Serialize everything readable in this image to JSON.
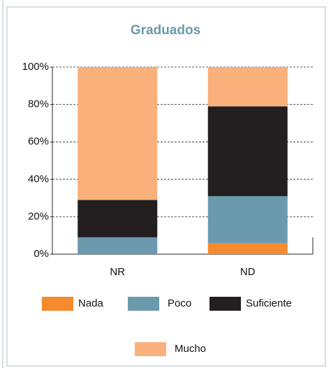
{
  "chart_data": {
    "type": "stacked_bar",
    "title": "Graduados",
    "categories": [
      "NR",
      "ND"
    ],
    "series": [
      {
        "name": "Nada",
        "color": "#f58a2e",
        "values": [
          0,
          6
        ]
      },
      {
        "name": "Poco",
        "color": "#6b9aae",
        "values": [
          9,
          25
        ]
      },
      {
        "name": "Suficiente",
        "color": "#231f20",
        "values": [
          20,
          48
        ]
      },
      {
        "name": "Mucho",
        "color": "#f9b07a",
        "values": [
          71,
          21
        ]
      }
    ],
    "ylim": [
      0,
      100
    ],
    "yticks": [
      {
        "value": 0,
        "label": "0%"
      },
      {
        "value": 20,
        "label": "20%"
      },
      {
        "value": 40,
        "label": "40%"
      },
      {
        "value": 60,
        "label": "60%"
      },
      {
        "value": 80,
        "label": "80%"
      },
      {
        "value": 100,
        "label": "100%"
      }
    ],
    "grid": true
  }
}
